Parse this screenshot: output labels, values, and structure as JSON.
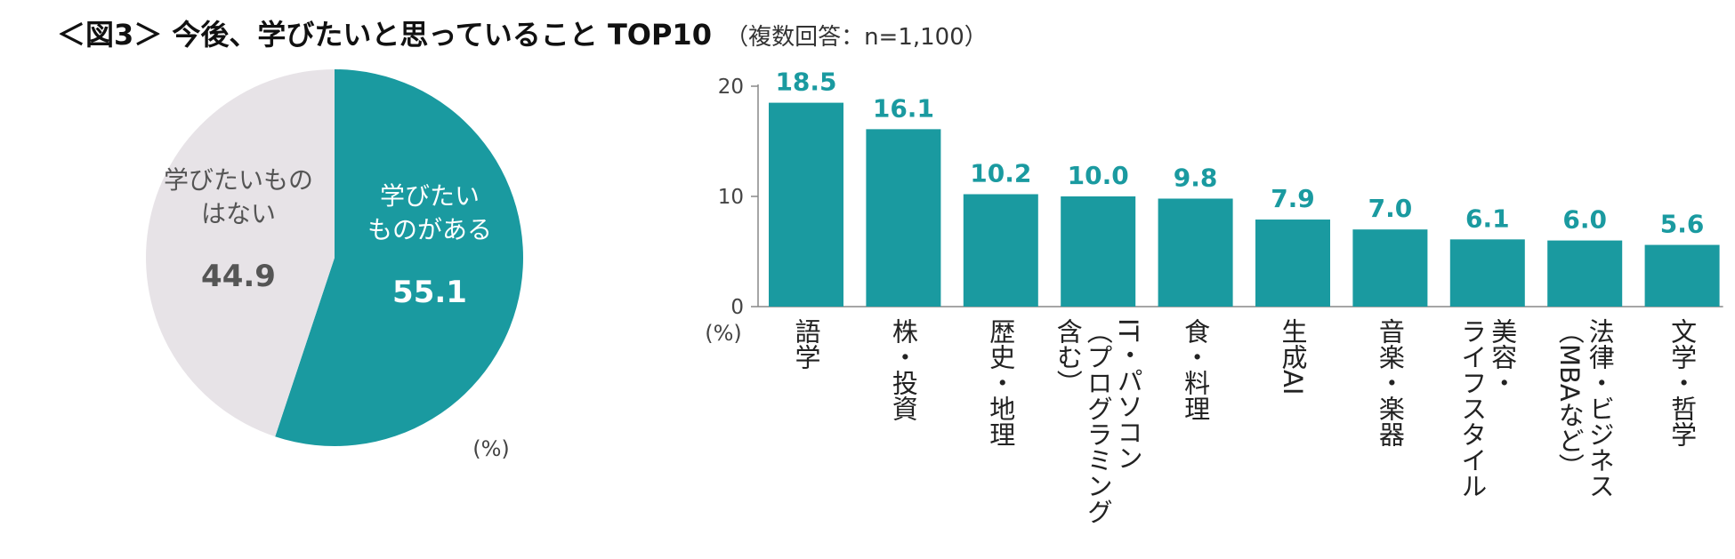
{
  "title": {
    "main": "＜図3＞ 今後、学びたいと思っていること TOP10",
    "sub": "（複数回答：n=1,100）"
  },
  "colors": {
    "teal": "#1a9aa0",
    "gray": "#e7e3e7",
    "axis": "#888888",
    "value_text": "#1a9aa0",
    "gray_text": "#555555"
  },
  "chart_data": [
    {
      "type": "pie",
      "unit": "(%)",
      "slices": [
        {
          "label_lines": [
            "学びたい",
            "ものがある"
          ],
          "value": 55.1,
          "value_text": "55.1"
        },
        {
          "label_lines": [
            "学びたいもの",
            "はない"
          ],
          "value": 44.9,
          "value_text": "44.9"
        }
      ]
    },
    {
      "type": "bar",
      "unit": "(%)",
      "ylim": [
        0,
        20
      ],
      "yticks": [
        "0",
        "10",
        "20"
      ],
      "categories": [
        {
          "lines": [
            "語学"
          ],
          "value": 18.5,
          "value_text": "18.5"
        },
        {
          "lines": [
            "株・投資"
          ],
          "value": 16.1,
          "value_text": "16.1"
        },
        {
          "lines": [
            "歴史・地理"
          ],
          "value": 10.2,
          "value_text": "10.2"
        },
        {
          "lines": [
            "IT・パソコン",
            "（プログラミング",
            "含む）"
          ],
          "value": 10.0,
          "value_text": "10.0"
        },
        {
          "lines": [
            "食・料理"
          ],
          "value": 9.8,
          "value_text": "9.8"
        },
        {
          "lines": [
            "生成AI"
          ],
          "value": 7.9,
          "value_text": "7.9"
        },
        {
          "lines": [
            "音楽・楽器"
          ],
          "value": 7.0,
          "value_text": "7.0"
        },
        {
          "lines": [
            "美容・",
            "ライフスタイル"
          ],
          "value": 6.1,
          "value_text": "6.1"
        },
        {
          "lines": [
            "法律・ビジネス",
            "（MBAなど）"
          ],
          "value": 6.0,
          "value_text": "6.0"
        },
        {
          "lines": [
            "文学・哲学"
          ],
          "value": 5.6,
          "value_text": "5.6"
        }
      ]
    }
  ]
}
